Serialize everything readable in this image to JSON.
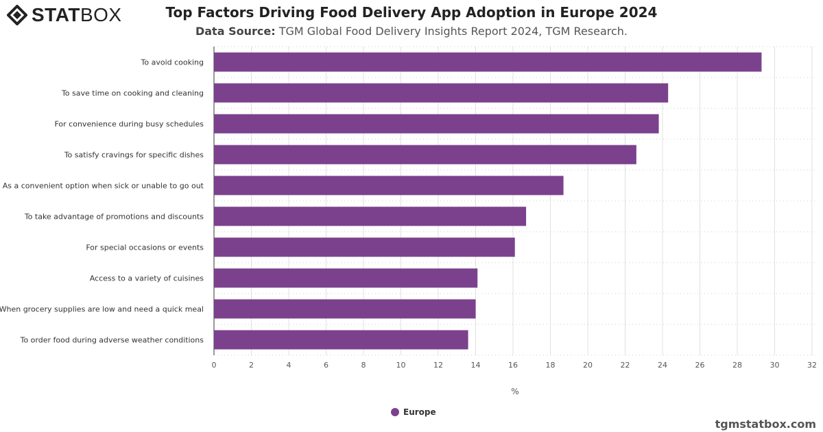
{
  "logo": {
    "text_bold": "STAT",
    "text_light": "BOX"
  },
  "header": {
    "title": "Top Factors Driving Food Delivery App Adoption in Europe 2024",
    "source_label": "Data Source:",
    "source_text": "TGM Global Food Delivery Insights Report 2024, TGM Research."
  },
  "footer": {
    "credit": "tgmstatbox.com"
  },
  "colors": {
    "bar": "#7b418d",
    "grid": "#e0e0e0"
  },
  "chart_data": {
    "type": "bar",
    "orientation": "horizontal",
    "title": "Top Factors Driving Food Delivery App Adoption in Europe 2024",
    "xlabel": "%",
    "ylabel": "",
    "xlim": [
      0,
      32
    ],
    "xticks": [
      0,
      2,
      4,
      6,
      8,
      10,
      12,
      14,
      16,
      18,
      20,
      22,
      24,
      26,
      28,
      30,
      32
    ],
    "grid": true,
    "legend_position": "bottom",
    "categories": [
      "To avoid cooking",
      "To save time on cooking and cleaning",
      "For convenience during busy schedules",
      "To satisfy cravings for specific dishes",
      "As a convenient option when sick or unable to go out",
      "To take advantage of promotions and discounts",
      "For special occasions or events",
      "Access to a variety of cuisines",
      "When grocery supplies are low and need a quick meal",
      "To order food during adverse weather conditions"
    ],
    "series": [
      {
        "name": "Europe",
        "values": [
          29.3,
          24.3,
          23.8,
          22.6,
          18.7,
          16.7,
          16.1,
          14.1,
          14.0,
          13.6
        ]
      }
    ]
  }
}
